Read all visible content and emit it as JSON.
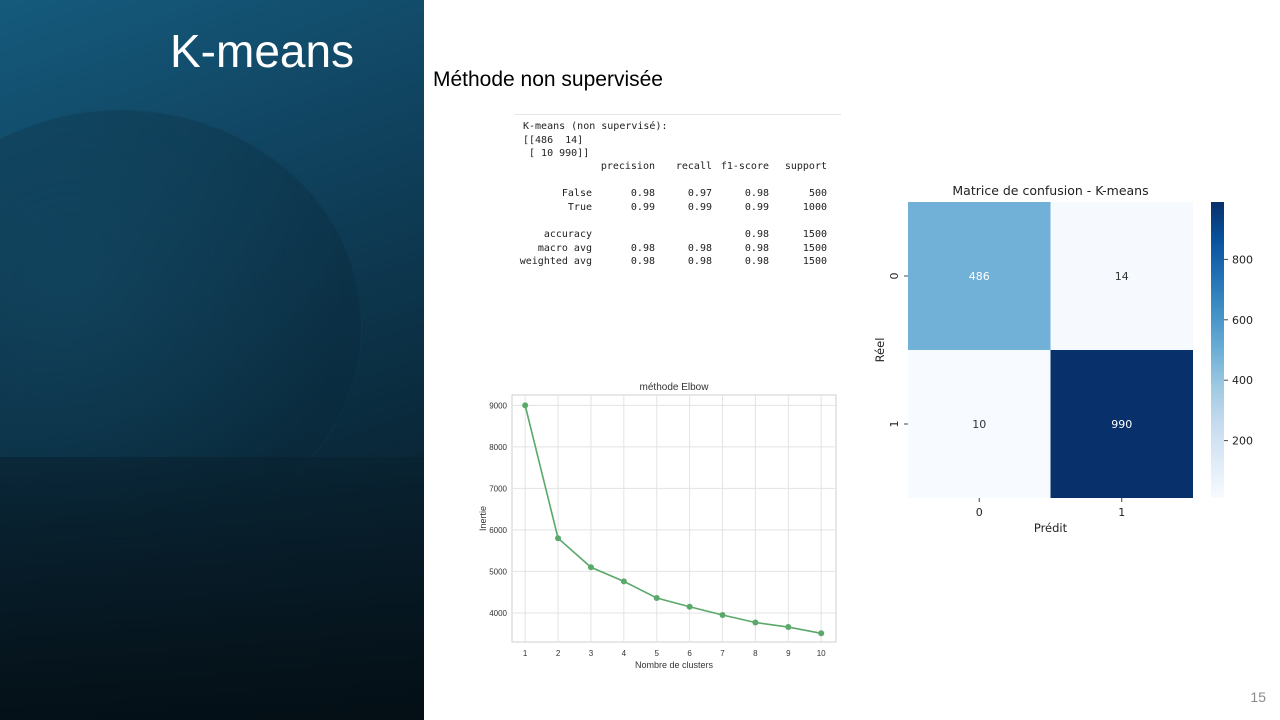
{
  "slide": {
    "title": "K-means",
    "subtitle": "Méthode non supervisée",
    "page_number": "15"
  },
  "report": {
    "header_lines": [
      "K-means (non supervisé):",
      "[[486  14]",
      " [ 10 990]]"
    ],
    "columns": [
      "precision",
      "recall",
      "f1-score",
      "support"
    ],
    "rows": [
      {
        "label": "False",
        "values": [
          "0.98",
          "0.97",
          "0.98",
          "500"
        ]
      },
      {
        "label": "True",
        "values": [
          "0.99",
          "0.99",
          "0.99",
          "1000"
        ]
      },
      {
        "label": "accuracy",
        "values": [
          "",
          "",
          "0.98",
          "1500"
        ]
      },
      {
        "label": "macro avg",
        "values": [
          "0.98",
          "0.98",
          "0.98",
          "1500"
        ]
      },
      {
        "label": "weighted avg",
        "values": [
          "0.98",
          "0.98",
          "0.98",
          "1500"
        ]
      }
    ]
  },
  "colors": {
    "elbow_line": "#5aa86a",
    "cm_low": "#f7fbff",
    "cm_high": "#08306b"
  },
  "chart_data": [
    {
      "type": "line",
      "title": "méthode Elbow",
      "xlabel": "Nombre de clusters",
      "ylabel": "Inertie",
      "x": [
        1,
        2,
        3,
        4,
        5,
        6,
        7,
        8,
        9,
        10
      ],
      "y": [
        9000,
        5800,
        5100,
        4760,
        4360,
        4150,
        3950,
        3770,
        3660,
        3510
      ],
      "xlim": [
        1,
        10
      ],
      "ylim": [
        3300,
        9250
      ],
      "yticks": [
        4000,
        5000,
        6000,
        7000,
        8000,
        9000
      ],
      "grid": true
    },
    {
      "type": "heatmap",
      "title": "Matrice de confusion - K-means",
      "xlabel": "Prédit",
      "ylabel": "Réel",
      "x_categories": [
        "0",
        "1"
      ],
      "y_categories": [
        "0",
        "1"
      ],
      "values": [
        [
          486,
          14
        ],
        [
          10,
          990
        ]
      ],
      "colorbar_ticks": [
        200,
        400,
        600,
        800
      ],
      "colorbar_range": [
        10,
        990
      ],
      "colormap": "Blues"
    }
  ]
}
